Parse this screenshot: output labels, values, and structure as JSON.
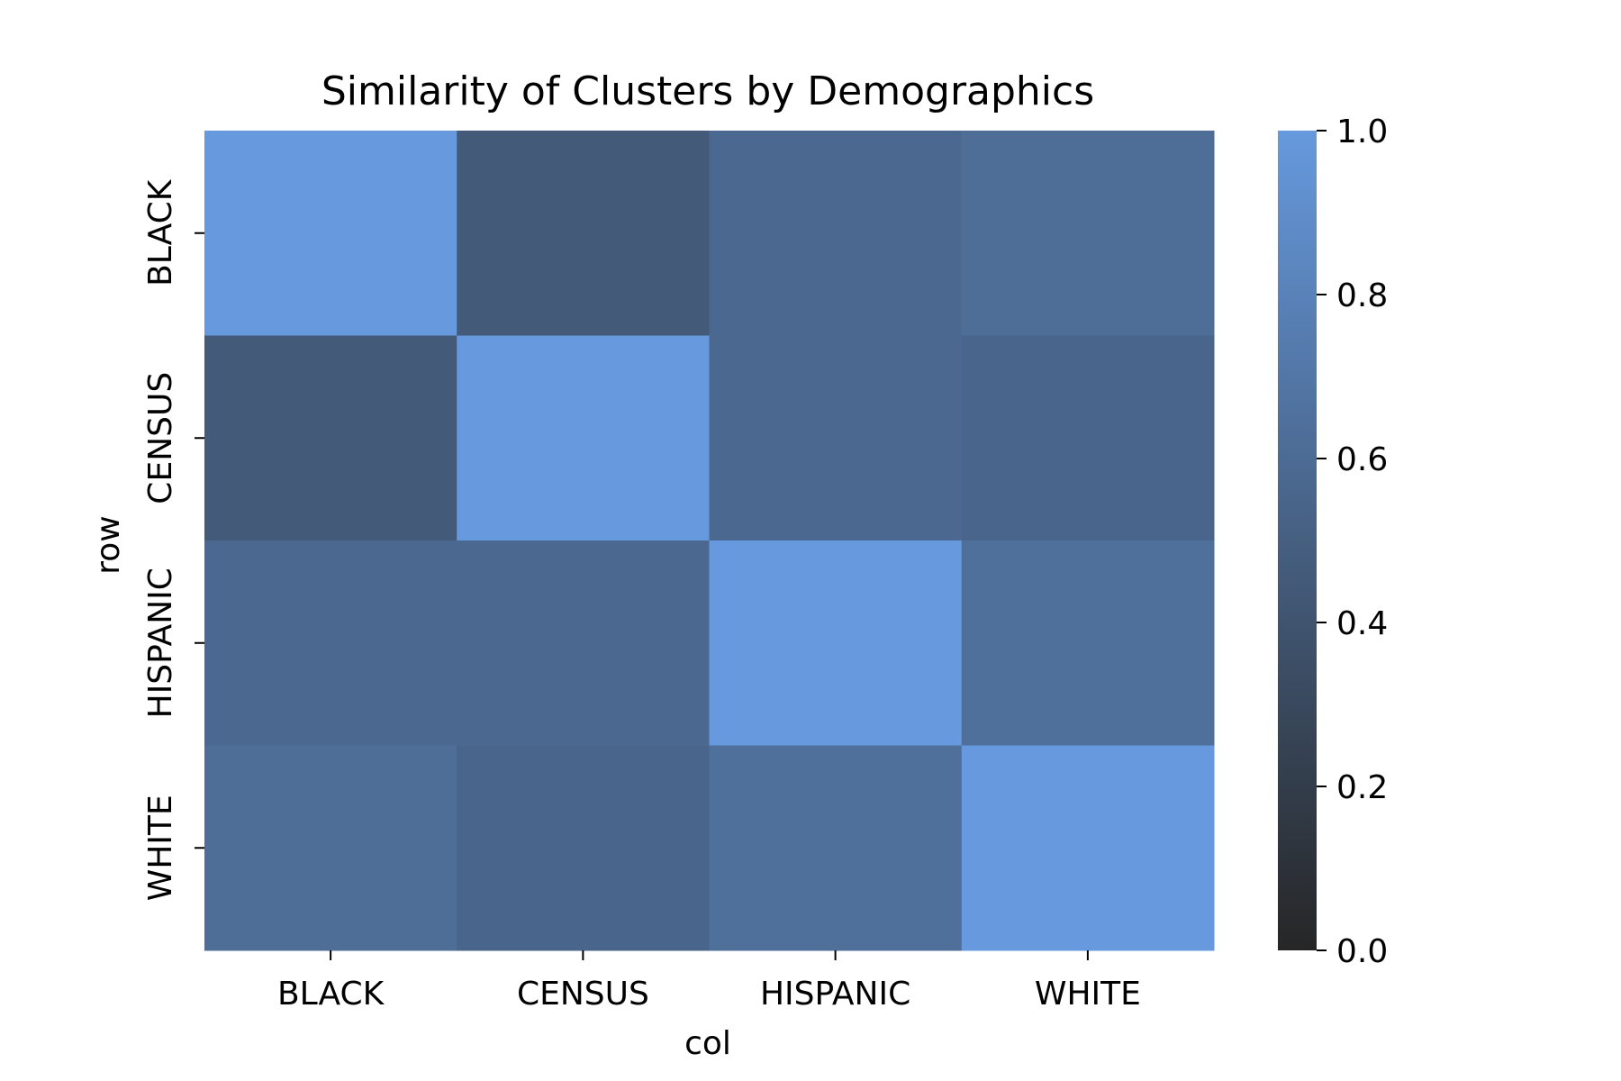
{
  "chart_data": {
    "type": "heatmap",
    "title": "Similarity of Clusters by Demographics",
    "xlabel": "col",
    "ylabel": "row",
    "x_categories": [
      "BLACK",
      "CENSUS",
      "HISPANIC",
      "WHITE"
    ],
    "y_categories": [
      "BLACK",
      "CENSUS",
      "HISPANIC",
      "WHITE"
    ],
    "values": [
      [
        1.0,
        0.45,
        0.58,
        0.62
      ],
      [
        0.45,
        1.0,
        0.58,
        0.55
      ],
      [
        0.58,
        0.58,
        1.0,
        0.64
      ],
      [
        0.62,
        0.55,
        0.64,
        1.0
      ]
    ],
    "colorbar": {
      "range": [
        0.0,
        1.0
      ],
      "ticks": [
        "0.0",
        "0.2",
        "0.4",
        "0.6",
        "0.8",
        "1.0"
      ],
      "color_low": "#262626",
      "color_high": "#6699dd"
    },
    "grid": false,
    "legend": "colorbar-right"
  }
}
